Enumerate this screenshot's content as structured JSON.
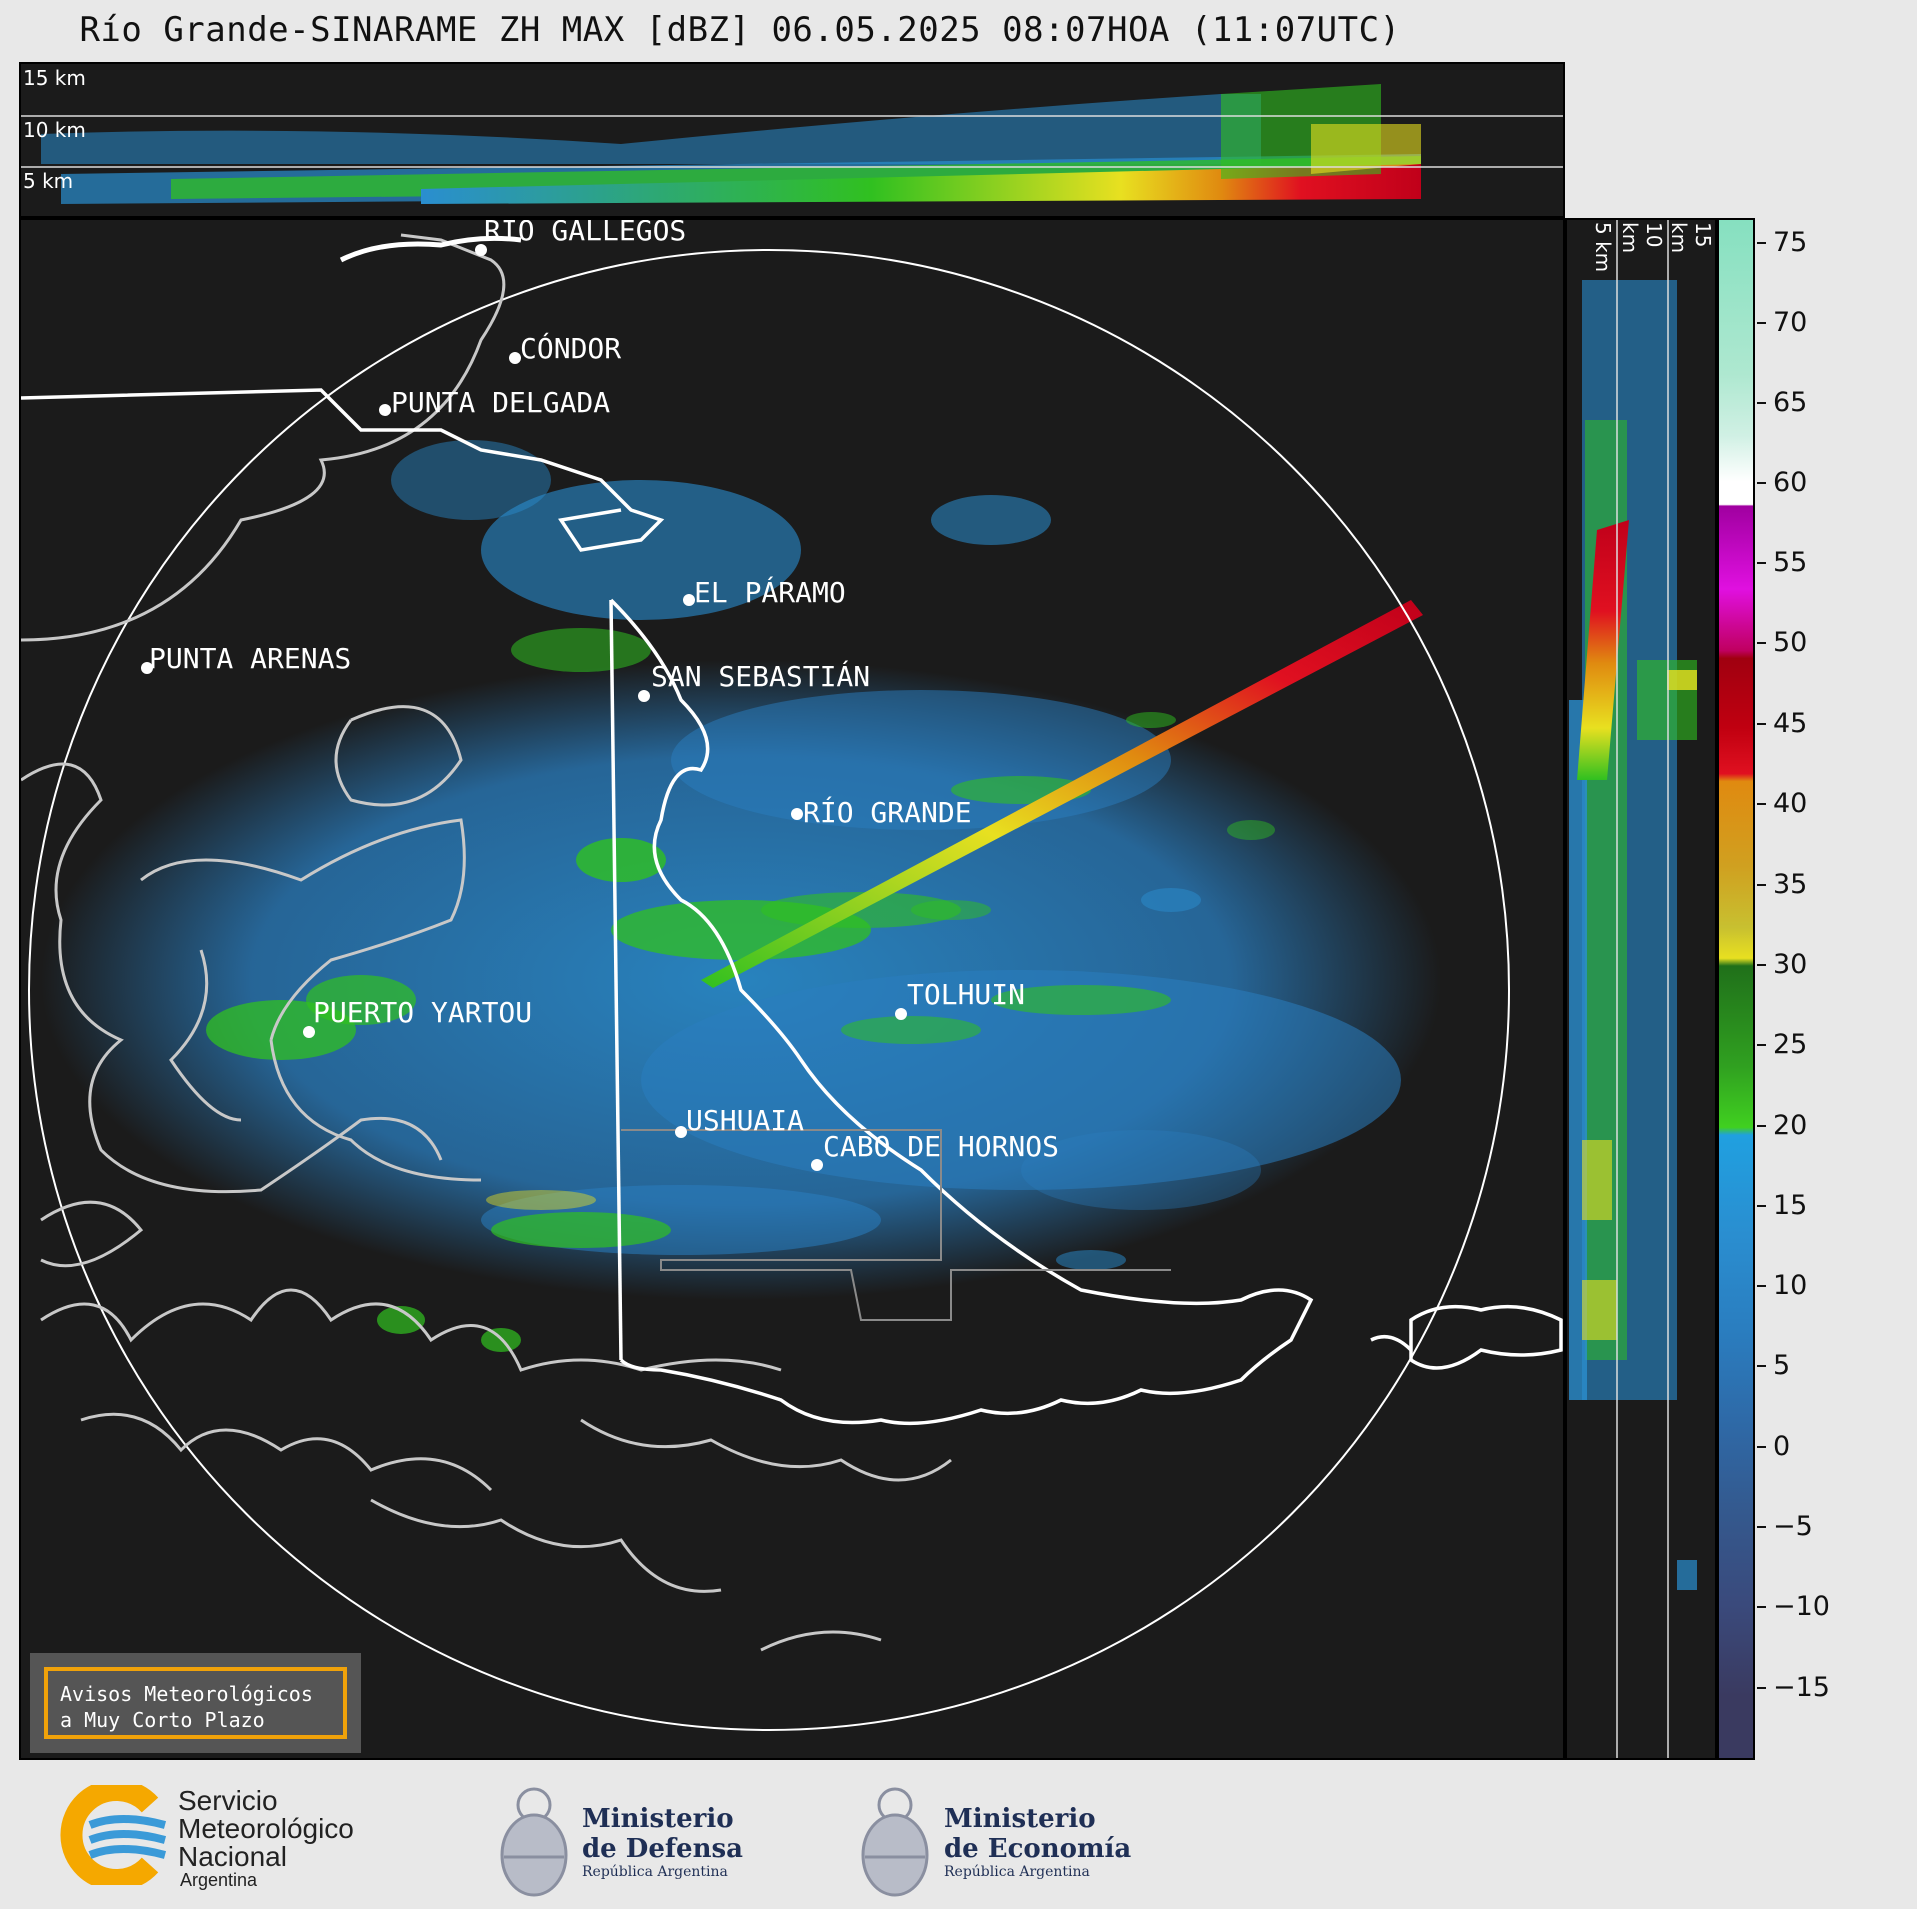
{
  "title": "Río Grande-SINARAME ZH MAX [dBZ] 06.05.2025 08:07HOA (11:07UTC)",
  "top_panel": {
    "km_labels": [
      "15 km",
      "10 km",
      "5 km"
    ]
  },
  "side_panel": {
    "km_labels": [
      "5 km",
      "10 km",
      "15 km"
    ]
  },
  "colorbar": {
    "unit": "dBZ",
    "ticks": [
      "75",
      "70",
      "65",
      "60",
      "55",
      "50",
      "45",
      "40",
      "35",
      "30",
      "25",
      "20",
      "15",
      "10",
      "5",
      "0",
      "−5",
      "−10",
      "−15"
    ],
    "colors": {
      "teal": "#86e0c0",
      "white": "#ffffff",
      "magenta": "#e010e0",
      "darkred": "#a00010",
      "red": "#e01020",
      "orange": "#e08a10",
      "yellow": "#e8e020",
      "green": "#30c020",
      "blue": "#2a8ed0",
      "slate": "#3a5080"
    }
  },
  "cities": [
    {
      "name": "RÍO GALLEGOS"
    },
    {
      "name": "CÓNDOR"
    },
    {
      "name": "PUNTA DELGADA"
    },
    {
      "name": "EL PÁRAMO"
    },
    {
      "name": "PUNTA ARENAS"
    },
    {
      "name": "SAN SEBASTIÁN"
    },
    {
      "name": "RÍO GRANDE"
    },
    {
      "name": "PUERTO YARTOU"
    },
    {
      "name": "TOLHUIN"
    },
    {
      "name": "USHUAIA"
    },
    {
      "name": "CABO DE HORNOS"
    }
  ],
  "alert": {
    "line1": "Avisos Meteorológicos",
    "line2": "a Muy Corto Plazo"
  },
  "footer": {
    "smn": {
      "line1": "Servicio",
      "line2": "Meteorológico",
      "line3": "Nacional",
      "line4": "Argentina"
    },
    "defensa": {
      "line1": "Ministerio",
      "line2": "de Defensa",
      "line3": "República Argentina"
    },
    "economia": {
      "line1": "Ministerio",
      "line2": "de Economía",
      "line3": "República Argentina"
    }
  }
}
